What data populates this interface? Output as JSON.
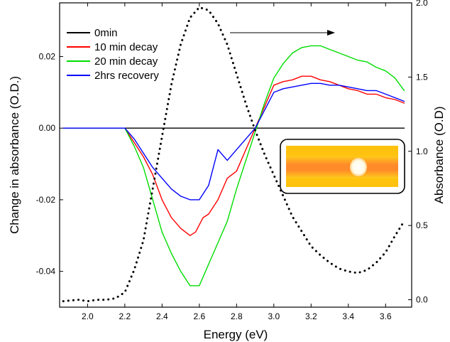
{
  "chart_data": {
    "type": "line",
    "title": "",
    "xlabel": "Energy (eV)",
    "ylabel_left": "Change in absorbance (O.D.)",
    "ylabel_right": "Absorbance (O.D)",
    "xlim": [
      1.85,
      3.74
    ],
    "ylim_left": [
      -0.05,
      0.035
    ],
    "ylim_right": [
      -0.05,
      2.0
    ],
    "x_ticks": [
      "2.0",
      "2.2",
      "2.4",
      "2.6",
      "2.8",
      "3.0",
      "3.2",
      "3.4",
      "3.6"
    ],
    "x_tick_values": [
      2.0,
      2.2,
      2.4,
      2.6,
      2.8,
      3.0,
      3.2,
      3.4,
      3.6
    ],
    "y_left_ticks": [
      "0.02",
      "0.00",
      "-0.02",
      "-0.04"
    ],
    "y_left_tick_values": [
      0.02,
      0.0,
      -0.02,
      -0.04
    ],
    "y_right_ticks": [
      "2.0",
      "1.5",
      "1.0",
      "0.5",
      "0.0"
    ],
    "y_right_tick_values": [
      2.0,
      1.5,
      1.0,
      0.5,
      0.0
    ],
    "grid": false,
    "legend_position": "top-left",
    "annotations": [
      "right-pointing arrow above the curves",
      "inset image of orange film with white spot"
    ],
    "series": [
      {
        "name": "0min",
        "axis": "left",
        "color": "#000000",
        "style": "solid",
        "x": [
          1.87,
          3.7
        ],
        "y": [
          0.0,
          0.0
        ]
      },
      {
        "name": "10 min decay",
        "axis": "left",
        "color": "#ff0000",
        "style": "solid",
        "x": [
          1.87,
          2.0,
          2.1,
          2.2,
          2.25,
          2.3,
          2.35,
          2.4,
          2.45,
          2.5,
          2.55,
          2.58,
          2.62,
          2.65,
          2.7,
          2.75,
          2.8,
          2.85,
          2.9,
          2.95,
          3.0,
          3.05,
          3.1,
          3.15,
          3.2,
          3.25,
          3.3,
          3.35,
          3.4,
          3.45,
          3.5,
          3.55,
          3.6,
          3.65,
          3.7
        ],
        "y": [
          0.0,
          0.0,
          0.0,
          0.0,
          -0.004,
          -0.008,
          -0.013,
          -0.02,
          -0.025,
          -0.028,
          -0.03,
          -0.029,
          -0.025,
          -0.024,
          -0.02,
          -0.014,
          -0.012,
          -0.006,
          0.0,
          0.006,
          0.012,
          0.013,
          0.0135,
          0.0145,
          0.0145,
          0.0135,
          0.013,
          0.012,
          0.011,
          0.0105,
          0.0095,
          0.0095,
          0.0085,
          0.008,
          0.007
        ]
      },
      {
        "name": "20 min decay",
        "axis": "left",
        "color": "#00dd00",
        "style": "solid",
        "x": [
          1.87,
          2.0,
          2.1,
          2.2,
          2.25,
          2.3,
          2.35,
          2.4,
          2.45,
          2.5,
          2.55,
          2.6,
          2.65,
          2.7,
          2.75,
          2.8,
          2.85,
          2.9,
          2.95,
          3.0,
          3.05,
          3.1,
          3.15,
          3.2,
          3.25,
          3.3,
          3.35,
          3.4,
          3.45,
          3.5,
          3.55,
          3.6,
          3.65,
          3.7
        ],
        "y": [
          0.0,
          0.0,
          0.0,
          0.0,
          -0.005,
          -0.011,
          -0.02,
          -0.029,
          -0.035,
          -0.04,
          -0.044,
          -0.044,
          -0.038,
          -0.032,
          -0.026,
          -0.017,
          -0.009,
          -0.001,
          0.007,
          0.014,
          0.018,
          0.021,
          0.0225,
          0.023,
          0.023,
          0.022,
          0.021,
          0.02,
          0.019,
          0.0185,
          0.017,
          0.016,
          0.014,
          0.0105
        ]
      },
      {
        "name": "2hrs recovery",
        "axis": "left",
        "color": "#0000ff",
        "style": "solid",
        "x": [
          1.87,
          2.0,
          2.1,
          2.2,
          2.25,
          2.3,
          2.35,
          2.4,
          2.45,
          2.5,
          2.55,
          2.6,
          2.65,
          2.7,
          2.75,
          2.8,
          2.85,
          2.9,
          2.95,
          3.0,
          3.05,
          3.1,
          3.15,
          3.2,
          3.25,
          3.3,
          3.35,
          3.4,
          3.45,
          3.5,
          3.55,
          3.6,
          3.65,
          3.7
        ],
        "y": [
          0.0,
          0.0,
          0.0,
          0.0,
          -0.003,
          -0.007,
          -0.011,
          -0.014,
          -0.017,
          -0.019,
          -0.02,
          -0.02,
          -0.016,
          -0.006,
          -0.009,
          -0.006,
          -0.003,
          0.0,
          0.005,
          0.01,
          0.011,
          0.0115,
          0.012,
          0.0125,
          0.0125,
          0.012,
          0.012,
          0.0115,
          0.011,
          0.0105,
          0.0105,
          0.0095,
          0.0085,
          0.0075
        ]
      },
      {
        "name": "",
        "axis": "right",
        "color": "#000000",
        "style": "dotted",
        "x": [
          1.87,
          1.95,
          2.0,
          2.05,
          2.1,
          2.15,
          2.2,
          2.25,
          2.3,
          2.35,
          2.4,
          2.45,
          2.5,
          2.55,
          2.6,
          2.65,
          2.7,
          2.75,
          2.8,
          2.85,
          2.9,
          2.95,
          3.0,
          3.05,
          3.1,
          3.15,
          3.2,
          3.25,
          3.3,
          3.35,
          3.4,
          3.45,
          3.5,
          3.55,
          3.6,
          3.65,
          3.7
        ],
        "y": [
          -0.01,
          0.0,
          -0.01,
          0.0,
          0.0,
          0.01,
          0.05,
          0.2,
          0.4,
          0.75,
          1.1,
          1.45,
          1.72,
          1.9,
          1.97,
          1.95,
          1.86,
          1.72,
          1.52,
          1.32,
          1.14,
          0.98,
          0.84,
          0.7,
          0.56,
          0.46,
          0.36,
          0.3,
          0.25,
          0.21,
          0.19,
          0.18,
          0.2,
          0.25,
          0.32,
          0.43,
          0.53
        ]
      }
    ]
  }
}
